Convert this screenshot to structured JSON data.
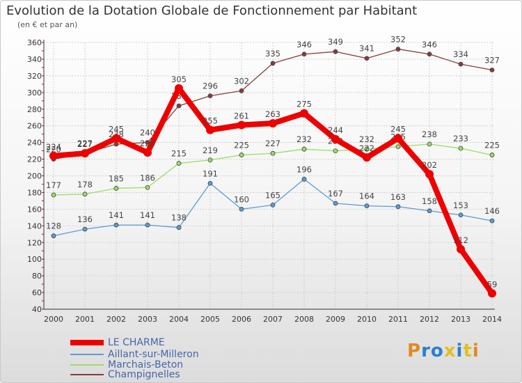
{
  "chart_data": {
    "type": "line",
    "title": "Evolution de la Dotation Globale de Fonctionnement par Habitant",
    "subtitle": "(en € et par an)",
    "xlabel": "",
    "ylabel": "",
    "ylim": [
      40,
      360
    ],
    "yticks": [
      40,
      60,
      80,
      100,
      120,
      140,
      160,
      180,
      200,
      220,
      240,
      260,
      280,
      300,
      320,
      340,
      360
    ],
    "categories": [
      "2000",
      "2001",
      "2002",
      "2003",
      "2004",
      "2005",
      "2006",
      "2007",
      "2008",
      "2009",
      "2010",
      "2011",
      "2012",
      "2013",
      "2014"
    ],
    "grid": true,
    "legend": "bottom-left",
    "series": [
      {
        "name": "Aillant-sur-Milleron",
        "color": "#5b9bd5",
        "values": [
          128,
          136,
          141,
          141,
          138,
          191,
          160,
          165,
          196,
          167,
          164,
          163,
          158,
          153,
          146
        ]
      },
      {
        "name": "Marchais-Beton",
        "color": "#99dd66",
        "values": [
          177,
          178,
          185,
          186,
          215,
          219,
          225,
          227,
          232,
          230,
          232,
          235,
          238,
          233,
          225
        ]
      },
      {
        "name": "Champignelles",
        "color": "#8b3a3a",
        "values": [
          220,
          227,
          238,
          240,
          284,
          296,
          302,
          335,
          346,
          349,
          341,
          352,
          346,
          334,
          327
        ]
      },
      {
        "name": "LE CHARME",
        "color": "#ee0000",
        "values": [
          224,
          227,
          245,
          228,
          305,
          255,
          261,
          263,
          275,
          244,
          222,
          245,
          202,
          112,
          59
        ]
      }
    ]
  },
  "legend": {
    "items": [
      {
        "label": "LE CHARME",
        "color": "#ee0000"
      },
      {
        "label": "Aillant-sur-Milleron",
        "color": "#5b9bd5"
      },
      {
        "label": "Marchais-Beton",
        "color": "#99dd66"
      },
      {
        "label": "Champignelles",
        "color": "#8b3a3a"
      }
    ]
  },
  "logo": {
    "text": "Proxiti"
  }
}
